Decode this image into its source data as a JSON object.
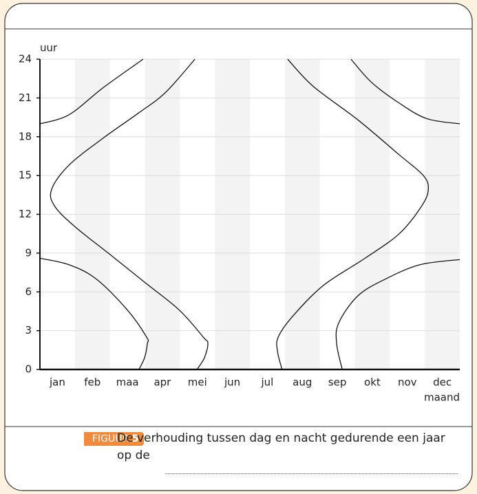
{
  "chart_data": {
    "type": "line",
    "y_label": "uur",
    "x_label": "maand",
    "categories": [
      "jan",
      "feb",
      "maa",
      "apr",
      "mei",
      "jun",
      "jul",
      "aug",
      "sep",
      "okt",
      "nov",
      "dec"
    ],
    "xlim": [
      0,
      12
    ],
    "ylim": [
      0,
      24
    ],
    "yticks": [
      0,
      3,
      6,
      9,
      12,
      15,
      18,
      21,
      24
    ],
    "grid": true,
    "series": [
      {
        "color": "#111",
        "x": [
          0,
          0.83,
          1.81,
          2.95
        ],
        "values": [
          19.0,
          19.7,
          21.8,
          24
        ]
      },
      {
        "color": "#111",
        "x": [
          0,
          0.83,
          1.61,
          2.5,
          3.05,
          3.07,
          2.99,
          2.83
        ],
        "values": [
          8.6,
          8.1,
          7.0,
          4.6,
          2.5,
          2.0,
          0.9,
          0
        ]
      },
      {
        "color": "#111",
        "x": [
          4.43,
          3.58,
          2.8,
          1.81,
          0.83,
          0.33,
          0.43,
          1.02,
          2.0,
          2.99,
          3.98,
          4.67,
          4.8,
          4.7,
          4.49
        ],
        "values": [
          24,
          21.4,
          19.8,
          17.9,
          15.8,
          13.9,
          12.6,
          11.0,
          8.9,
          6.75,
          4.6,
          2.5,
          2.0,
          0.9,
          0
        ]
      },
      {
        "color": "#111",
        "x": [
          7.08,
          7.81,
          9.09,
          10.27,
          10.96,
          11.1,
          10.9,
          10.27,
          9.29,
          8.1,
          7.22,
          6.81,
          6.79,
          6.92
        ],
        "values": [
          24,
          21.9,
          19.3,
          16.6,
          15.0,
          13.9,
          12.6,
          10.5,
          8.6,
          6.5,
          4.1,
          2.5,
          1.4,
          0
        ]
      },
      {
        "color": "#111",
        "x": [
          8.64,
          8.48,
          8.54,
          9.09,
          9.88,
          10.86,
          12
        ],
        "values": [
          0,
          2.0,
          3.6,
          5.7,
          7.0,
          8.1,
          8.5
        ]
      },
      {
        "color": "#111",
        "x": [
          8.89,
          9.48,
          10.27,
          11.06,
          12
        ],
        "values": [
          24,
          22.2,
          20.6,
          19.4,
          19.0
        ]
      }
    ]
  },
  "caption": {
    "label": "FIGUUR",
    "number": "5",
    "text": "De verhouding tussen dag en nacht gedurende een jaar op de"
  }
}
